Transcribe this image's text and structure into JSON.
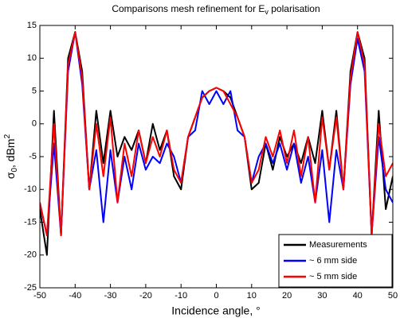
{
  "chart_data": {
    "type": "line",
    "title": [
      "Comparisons mesh refinement for E",
      "v",
      " polarisation"
    ],
    "xlabel": "Incidence angle, °",
    "ylabel": [
      "σ",
      "0",
      ", dBm",
      "2"
    ],
    "x": [
      -50,
      -48,
      -46,
      -44,
      -42,
      -40,
      -38,
      -36,
      -34,
      -32,
      -30,
      -28,
      -26,
      -24,
      -22,
      -20,
      -18,
      -16,
      -14,
      -12,
      -10,
      -8,
      -6,
      -4,
      -2,
      0,
      2,
      4,
      6,
      8,
      10,
      12,
      14,
      16,
      18,
      20,
      22,
      24,
      26,
      28,
      30,
      32,
      34,
      36,
      38,
      40,
      42,
      44,
      46,
      48,
      50
    ],
    "series": [
      {
        "name": "Measurements",
        "color": "#000000",
        "values": [
          -13,
          -20,
          2,
          -17,
          10,
          14,
          8,
          -10,
          2,
          -6,
          2,
          -5,
          -2,
          -4,
          -1,
          -6,
          0,
          -4,
          -1,
          -8,
          -10,
          -2,
          1,
          4,
          5,
          5.5,
          5,
          4,
          1,
          -2,
          -10,
          -9,
          -3,
          -7,
          -2,
          -5,
          -3,
          -6,
          -2,
          -6,
          2,
          -7,
          2,
          -10,
          8,
          14,
          10,
          -17,
          2,
          -13,
          -8
        ]
      },
      {
        "name": "~ 6 mm side",
        "color": "#0000ff",
        "values": [
          -12,
          -17,
          -3,
          -17,
          8,
          14,
          6,
          -10,
          -4,
          -15,
          -4,
          -12,
          -5,
          -10,
          -3,
          -7,
          -5,
          -6,
          -3,
          -5,
          -9,
          -2,
          -1,
          5,
          3,
          5,
          3,
          5,
          -1,
          -2,
          -9,
          -5,
          -3,
          -6,
          -3,
          -7,
          -3,
          -9,
          -5,
          -12,
          -4,
          -15,
          -4,
          -10,
          6,
          13,
          8,
          -17,
          -2,
          -10,
          -12
        ]
      },
      {
        "name": "~ 5 mm side",
        "color": "#ff0000",
        "values": [
          -12,
          -17,
          0,
          -17,
          9,
          14,
          7,
          -10,
          0,
          -8,
          1,
          -12,
          -3,
          -8,
          -1,
          -6,
          -2,
          -5,
          -1,
          -7,
          -9,
          -2,
          1,
          4,
          5,
          5.5,
          5,
          3,
          1,
          -2,
          -9,
          -7,
          -2,
          -5,
          -1,
          -6,
          -1,
          -8,
          -2,
          -12,
          1,
          -7,
          1,
          -10,
          7,
          14,
          9,
          -17,
          0,
          -8,
          -6
        ]
      }
    ],
    "xlim": [
      -50,
      50
    ],
    "xticks": [
      -50,
      -40,
      -30,
      -20,
      -10,
      0,
      10,
      20,
      30,
      40,
      50
    ],
    "ylim": [
      -25,
      15
    ],
    "yticks": [
      -25,
      -20,
      -15,
      -10,
      -5,
      0,
      5,
      10,
      15
    ],
    "grid": false,
    "legend": "lower right"
  }
}
